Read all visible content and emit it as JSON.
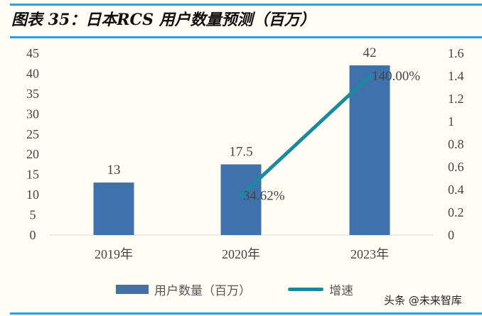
{
  "title": "图表 35：日本RCS 用户数量预测（百万）",
  "watermark": "头条 @未来智库",
  "colors": {
    "bar": "#3f72ad",
    "line": "#1a8a9e",
    "rule": "#2e9fd8"
  },
  "chart_data": {
    "type": "bar+line",
    "title": "图表 35：日本RCS 用户数量预测（百万）",
    "categories": [
      "2019年",
      "2020年",
      "2023年"
    ],
    "series": [
      {
        "name": "用户数量（百万）",
        "type": "bar",
        "axis": "left",
        "values": [
          13,
          17.5,
          42
        ],
        "labels": [
          "13",
          "17.5",
          "42"
        ]
      },
      {
        "name": "增速",
        "type": "line",
        "axis": "right",
        "values": [
          null,
          0.3462,
          1.4
        ],
        "labels": [
          "",
          "34.62%",
          "140.00%"
        ]
      }
    ],
    "ylim_left": [
      0,
      45
    ],
    "yticks_left": [
      "0",
      "5",
      "10",
      "15",
      "20",
      "25",
      "30",
      "35",
      "40",
      "45"
    ],
    "ylim_right": [
      0,
      1.6
    ],
    "yticks_right": [
      "0",
      "0.2",
      "0.4",
      "0.6",
      "0.8",
      "1",
      "1.2",
      "1.4",
      "1.6"
    ],
    "grid": false,
    "legend": "bottom"
  }
}
